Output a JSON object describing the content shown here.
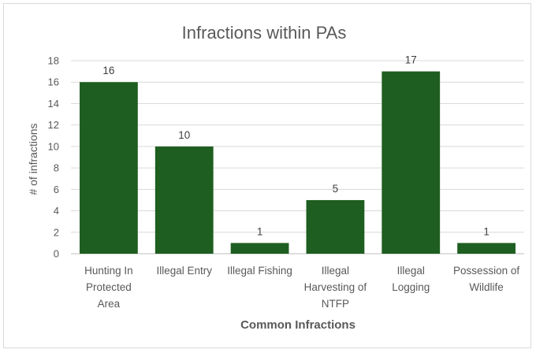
{
  "chart_data": {
    "type": "bar",
    "title": "Infractions within PAs",
    "xlabel": "Common Infractions",
    "ylabel": "# of infractions",
    "ylim": [
      0,
      18
    ],
    "yticks": [
      0,
      2,
      4,
      6,
      8,
      10,
      12,
      14,
      16,
      18
    ],
    "categories": [
      [
        "Hunting In",
        "Protected",
        "Area"
      ],
      [
        "Illegal Entry"
      ],
      [
        "Illegal Fishing"
      ],
      [
        "Illegal",
        "Harvesting of",
        "NTFP"
      ],
      [
        "Illegal",
        "Logging"
      ],
      [
        "Possession of",
        "Wildlife"
      ]
    ],
    "values": [
      16,
      10,
      1,
      5,
      17,
      1
    ],
    "data_labels": true,
    "grid": true,
    "legend": "none",
    "colors": {
      "bar": "#1e5e20",
      "grid": "#d9d9d9",
      "text": "#595959"
    }
  }
}
